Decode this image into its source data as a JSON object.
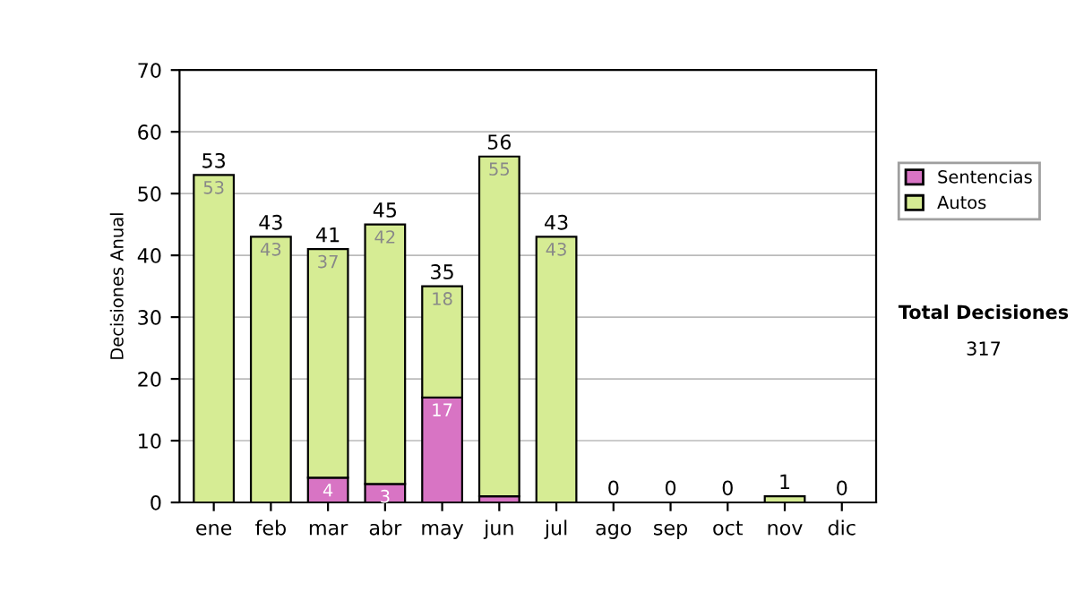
{
  "chart_data": {
    "type": "bar",
    "stacked": true,
    "ylabel": "Decisiones Anual",
    "categories": [
      "ene",
      "feb",
      "mar",
      "abr",
      "may",
      "jun",
      "jul",
      "ago",
      "sep",
      "oct",
      "nov",
      "dic"
    ],
    "series": [
      {
        "name": "Sentencias",
        "color": "#d874c4",
        "values": [
          0,
          0,
          4,
          3,
          17,
          1,
          0,
          0,
          0,
          0,
          0,
          0
        ],
        "value_labels": [
          null,
          null,
          "4",
          "3",
          "17",
          null,
          null,
          null,
          null,
          null,
          null,
          null
        ]
      },
      {
        "name": "Autos",
        "color": "#d6ec94",
        "values": [
          53,
          43,
          37,
          42,
          18,
          55,
          43,
          0,
          0,
          0,
          1,
          0
        ],
        "value_labels": [
          "53",
          "43",
          "37",
          "42",
          "18",
          "55",
          "43",
          null,
          null,
          null,
          null,
          null
        ]
      }
    ],
    "totals": [
      "53",
      "43",
      "41",
      "45",
      "35",
      "56",
      "43",
      "0",
      "0",
      "0",
      "1",
      "0"
    ],
    "ylim": [
      0,
      70
    ],
    "yticks": [
      0,
      10,
      20,
      30,
      40,
      50,
      60,
      70
    ],
    "grid": "y",
    "legend": "right",
    "annotations": [
      "Total Decisiones",
      "317"
    ]
  }
}
